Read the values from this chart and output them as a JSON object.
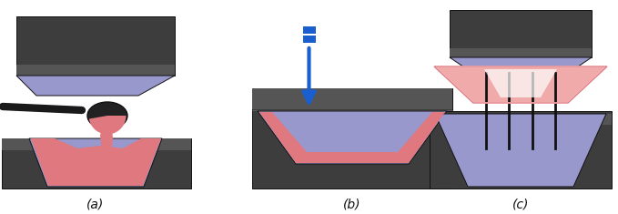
{
  "fig_width": 6.79,
  "fig_height": 2.35,
  "dpi": 100,
  "bg_color": "#ffffff",
  "dark_gray": "#3d3d3d",
  "dark_gray2": "#555555",
  "lavender": "#9898cc",
  "light_lavender": "#c0c0e0",
  "pink_red": "#e07880",
  "light_pink": "#f0aaaa",
  "very_light_pink": "#fad0d0",
  "blue_arrow": "#1a5fcf",
  "black": "#111111",
  "labels": [
    "(a)",
    "(b)",
    "(c)"
  ],
  "label_fontsize": 10
}
